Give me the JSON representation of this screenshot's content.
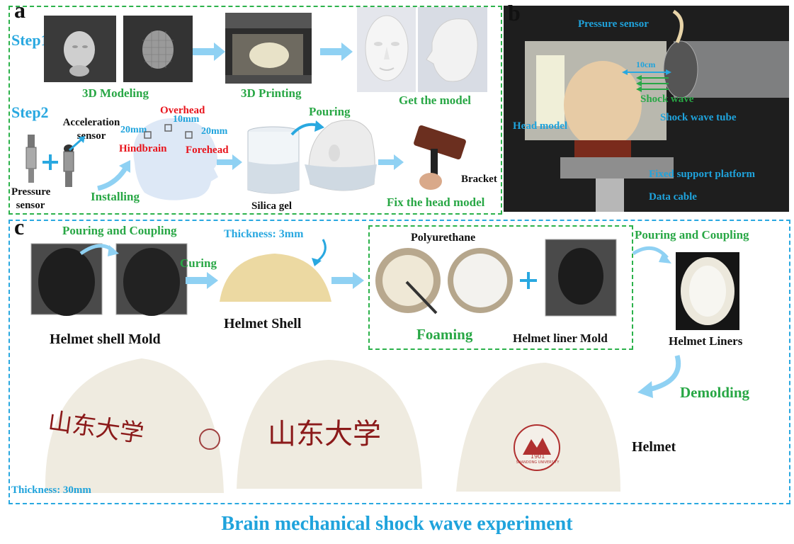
{
  "panel_a": {
    "letter": "a",
    "step1": "Step1",
    "step2": "Step2",
    "modeling": "3D Modeling",
    "printing": "3D Printing",
    "get_model": "Get the model",
    "acceleration_sensor": "Acceleration sensor",
    "pressure_sensor": "Pressure sensor",
    "overhead": "Overhead",
    "hindbrain": "Hindbrain",
    "forehead": "Forehead",
    "dist_20mm_left": "20mm",
    "dist_10mm": "10mm",
    "dist_20mm_right": "20mm",
    "installing": "Installing",
    "pouring": "Pouring",
    "silica_gel": "Silica gel",
    "bracket": "Bracket",
    "fix_head_model": "Fix the head model"
  },
  "panel_b": {
    "letter": "b",
    "pressure_sensor": "Pressure sensor",
    "distance": "10cm",
    "shock_wave": "Shock wave",
    "shock_wave_tube": "Shock wave tube",
    "head_model": "Head model",
    "fixed_support": "Fixed support platform",
    "data_cable": "Data cable"
  },
  "panel_c": {
    "letter": "c",
    "pouring_coupling_1": "Pouring and Coupling",
    "thickness_3mm": "Thickness: 3mm",
    "polyurethane": "Polyurethane",
    "pouring_coupling_2": "Pouring and Coupling",
    "curing": "Curing",
    "helmet_shell_mold": "Helmet shell Mold",
    "helmet_shell": "Helmet Shell",
    "foaming": "Foaming",
    "helmet_liner_mold": "Helmet liner Mold",
    "helmet_liners": "Helmet Liners",
    "demolding": "Demolding",
    "helmet": "Helmet",
    "thickness_30mm": "Thickness: 30mm",
    "calligraphy": "山东大学",
    "seal_text": "SHANDONG UNIVERSITY",
    "seal_year": "1901"
  },
  "footer": {
    "title": "Brain mechanical shock wave experiment"
  },
  "colors": {
    "green": "#28a745",
    "blue": "#1fa3dc",
    "red": "#e8131b",
    "dash_green": "#2cb24b",
    "dash_blue": "#29a8e0"
  }
}
